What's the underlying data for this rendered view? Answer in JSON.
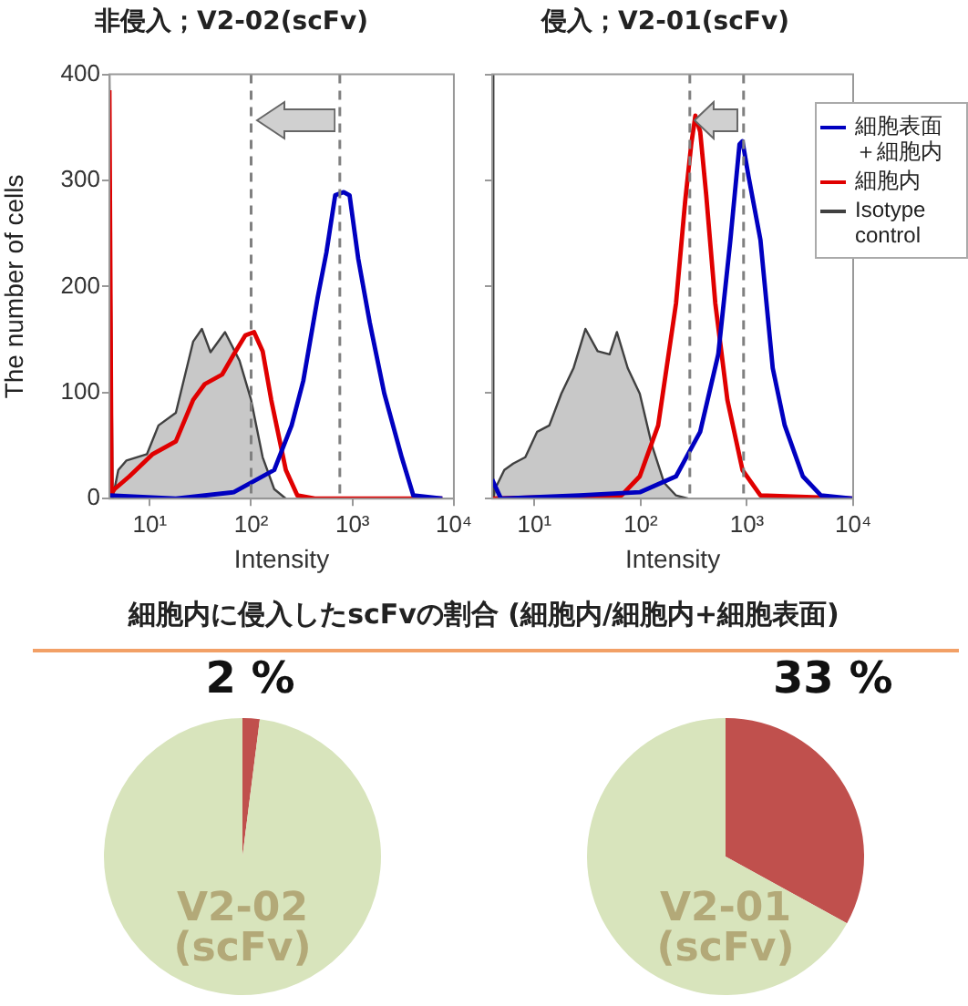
{
  "chart_data": [
    {
      "type": "line",
      "title": "非侵入；V2-02(scFv)",
      "xlabel": "Intensity",
      "ylabel": "The number of cells",
      "log": "x",
      "xlim": [
        4,
        10000
      ],
      "xticks": [
        {
          "value": 10,
          "label": "10¹"
        },
        {
          "value": 100,
          "label": "10²"
        },
        {
          "value": 1000,
          "label": "10³"
        },
        {
          "value": 10000,
          "label": "10⁴"
        }
      ],
      "ylim": [
        0,
        400
      ],
      "yticks": [
        0,
        100,
        200,
        300,
        400
      ],
      "marker": "none",
      "ref_lines": [
        {
          "axis": "x",
          "value": 100,
          "color": "#808080",
          "line_style": "dashed"
        },
        {
          "axis": "x",
          "value": 750,
          "color": "#808080",
          "line_style": "dashed"
        }
      ],
      "series": [
        {
          "color": "#0000c0",
          "x": [
            4.0,
            18.1,
            67.4,
            169,
            251,
            327,
            454,
            553,
            675,
            820,
            936,
            1140,
            1480,
            2060,
            3060,
            3980,
            7690
          ],
          "values": [
            3,
            0,
            6,
            27,
            69,
            111,
            190,
            232,
            286,
            289,
            286,
            226,
            166,
            99,
            39,
            3,
            0
          ]
        },
        {
          "color": "#e00000",
          "x": [
            4.0,
            4.2,
            4.5,
            6.3,
            10.7,
            18.1,
            26.8,
            34.9,
            51.8,
            67.4,
            87.7,
            107,
            130,
            158,
            220,
            286,
            425,
            7690
          ],
          "values": [
            385,
            5,
            9,
            21,
            42,
            54,
            93,
            108,
            117,
            136,
            154,
            157,
            139,
            93,
            27,
            3,
            0,
            0
          ]
        },
        {
          "type": "area",
          "color": "#404040",
          "x": [
            4.0,
            4.3,
            4.9,
            5.9,
            9.4,
            12.2,
            18.1,
            26.8,
            32.7,
            39.8,
            55.3,
            76.9,
            100,
            130,
            169,
            220
          ],
          "values": [
            400,
            0,
            27,
            36,
            42,
            69,
            81,
            148,
            160,
            138,
            157,
            130,
            93,
            39,
            9,
            0
          ]
        }
      ]
    },
    {
      "type": "line",
      "title": "侵入；V2-01(scFv)",
      "xlabel": "Intensity",
      "log": "x",
      "xlim": [
        4,
        10000
      ],
      "xticks": [
        {
          "value": 10,
          "label": "10¹"
        },
        {
          "value": 100,
          "label": "10²"
        },
        {
          "value": 1000,
          "label": "10³"
        },
        {
          "value": 10000,
          "label": "10⁴"
        }
      ],
      "ylim": [
        0,
        400
      ],
      "yticks": [
        0,
        100,
        200,
        300,
        400
      ],
      "tick_labels": "x",
      "marker": "none",
      "legend": "right",
      "ref_lines": [
        {
          "axis": "x",
          "value": 290,
          "color": "#808080",
          "line_style": "dashed"
        },
        {
          "axis": "x",
          "value": 930,
          "color": "#808080",
          "line_style": "dashed"
        }
      ],
      "series": [
        {
          "name": "細胞表面＋細胞内",
          "color": "#0000c0",
          "x": [
            4.0,
            4.84,
            26.5,
            98,
            215,
            363,
            537,
            699,
            851,
            908,
            1035,
            1340,
            1750,
            2270,
            3360,
            4970,
            9800
          ],
          "values": [
            18,
            0,
            3,
            6,
            21,
            63,
            136,
            244,
            334,
            337,
            304,
            244,
            123,
            69,
            21,
            3,
            0
          ]
        },
        {
          "name": "細胞内",
          "color": "#e00000",
          "x": [
            4.0,
            66,
            98,
            146,
            215,
            262,
            299,
            327,
            363,
            414,
            504,
            655,
            908,
            1340,
            9800
          ],
          "values": [
            0,
            3,
            21,
            69,
            184,
            280,
            334,
            361,
            346,
            286,
            184,
            93,
            27,
            3,
            0
          ]
        },
        {
          "name": "Isotype control",
          "type": "area",
          "color": "#404040",
          "x": [
            4.0,
            4.1,
            4.25,
            5.2,
            6.3,
            8.2,
            10.6,
            13.8,
            17.9,
            23.3,
            30.2,
            39.3,
            51,
            59.7,
            75.5,
            98,
            127,
            166,
            215,
            280
          ],
          "values": [
            400,
            0,
            9,
            27,
            33,
            39,
            63,
            69,
            99,
            123,
            160,
            139,
            136,
            157,
            123,
            99,
            51,
            15,
            3,
            0
          ]
        }
      ]
    },
    {
      "type": "pie",
      "title": "V2-02\n(scFv)",
      "annotations": [
        "細胞内に侵入したscFvの割合 (細胞内/細胞内+細胞表面)"
      ],
      "categories": [
        null,
        null
      ],
      "values": [
        2,
        98
      ],
      "colors": [
        "#c0504d",
        "#d8e4bc"
      ],
      "value_labels": [
        "2 %",
        null
      ]
    },
    {
      "type": "pie",
      "title": "V2-01\n(scFv)",
      "categories": [
        null,
        null
      ],
      "values": [
        33,
        67
      ],
      "colors": [
        "#c0504d",
        "#d8e4bc"
      ],
      "value_labels": [
        "33 %",
        null
      ]
    }
  ]
}
